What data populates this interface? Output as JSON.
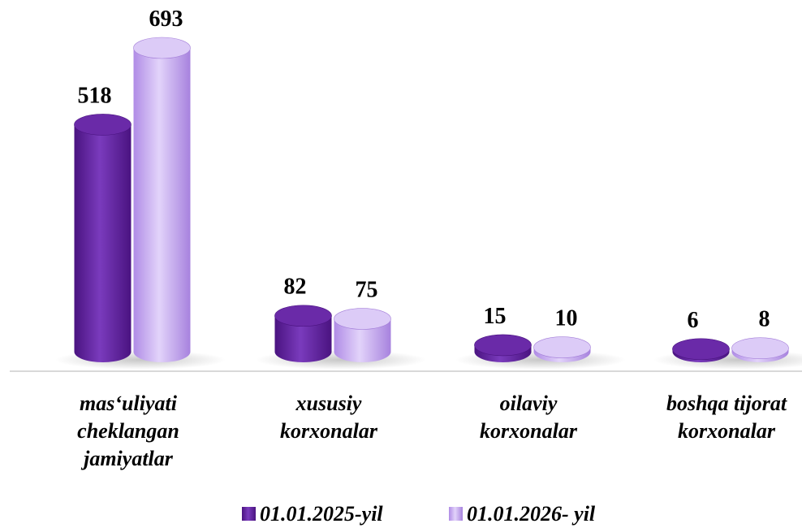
{
  "chart_data": {
    "type": "bar",
    "categories": [
      [
        "mas‘uliyati",
        "cheklangan",
        "jamiyatlar"
      ],
      [
        "xususiy",
        "korxonalar"
      ],
      [
        "oilaviy",
        "korxonalar"
      ],
      [
        "boshqa tijorat",
        "korxonalar"
      ]
    ],
    "series": [
      {
        "name": "01.01.2025-yil",
        "values": [
          518,
          82,
          15,
          6
        ],
        "color": "#6a2aa8",
        "color_light": "#8e4fcf",
        "color_dark": "#4a1380"
      },
      {
        "name": "01.01.2026- yil",
        "values": [
          693,
          75,
          10,
          8
        ],
        "color": "#c4a6ef",
        "color_light": "#dccbf7",
        "color_dark": "#a47fd9"
      }
    ],
    "legend_position": "bottom",
    "grid": false,
    "ylim": [
      0,
      693
    ]
  }
}
